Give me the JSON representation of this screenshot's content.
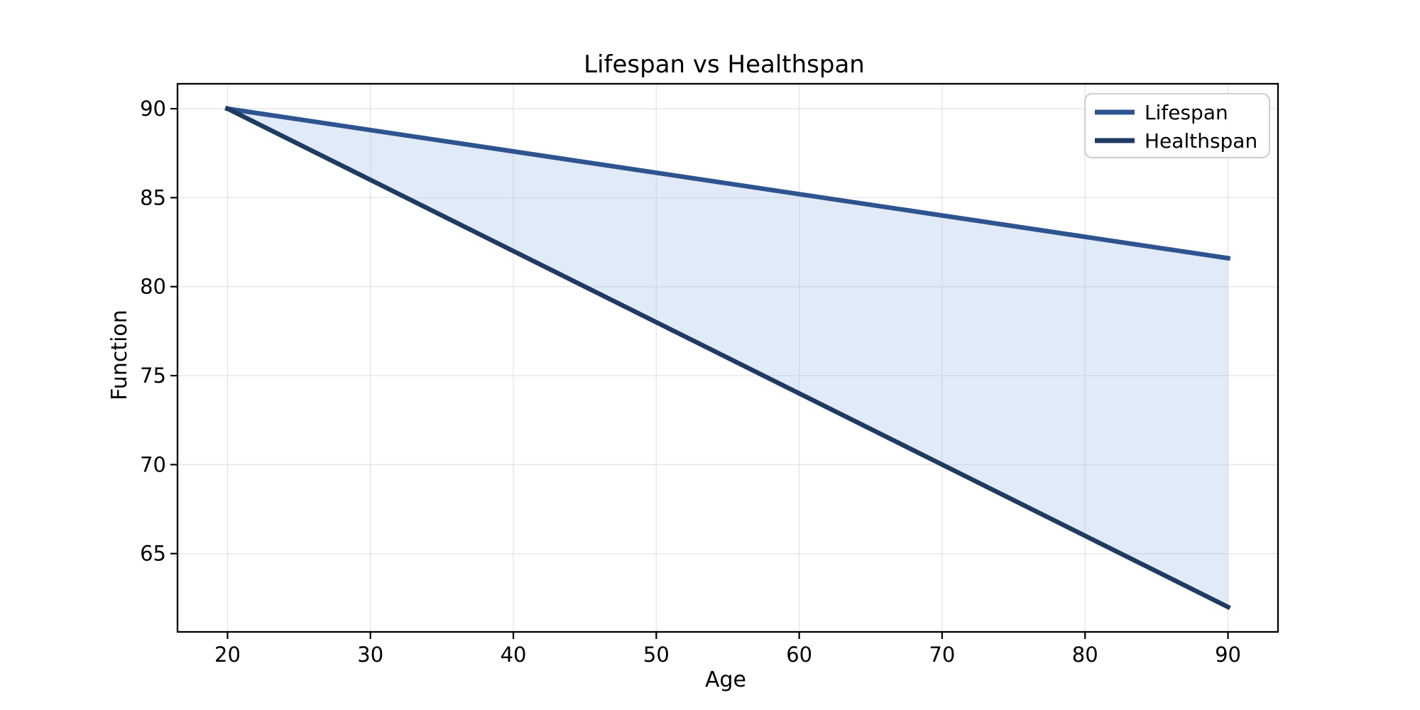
{
  "chart_data": {
    "type": "line",
    "title": "Lifespan vs Healthspan",
    "xlabel": "Age",
    "ylabel": "Function",
    "x": [
      20,
      30,
      40,
      50,
      60,
      70,
      80,
      90
    ],
    "series": [
      {
        "name": "Lifespan",
        "color": "#2d5490",
        "values": [
          90,
          88.8,
          87.6,
          86.4,
          85.2,
          84,
          82.8,
          81.6
        ]
      },
      {
        "name": "Healthspan",
        "color": "#1f3a63",
        "values": [
          90,
          86,
          82,
          78,
          74,
          70,
          66,
          62
        ]
      }
    ],
    "fill_between": {
      "between": [
        "Lifespan",
        "Healthspan"
      ],
      "color": "#a8c4e8",
      "opacity": 0.35
    },
    "xlim": [
      16.5,
      93.5
    ],
    "ylim": [
      60.6,
      91.4
    ],
    "xticks": [
      20,
      30,
      40,
      50,
      60,
      70,
      80,
      90
    ],
    "yticks": [
      65,
      70,
      75,
      80,
      85,
      90
    ],
    "grid": true,
    "grid_color": "#e5e5e5",
    "spine_color": "#000000",
    "background_color": "#ffffff",
    "legend_position": "upper right",
    "legend_border_color": "#cccccc"
  }
}
